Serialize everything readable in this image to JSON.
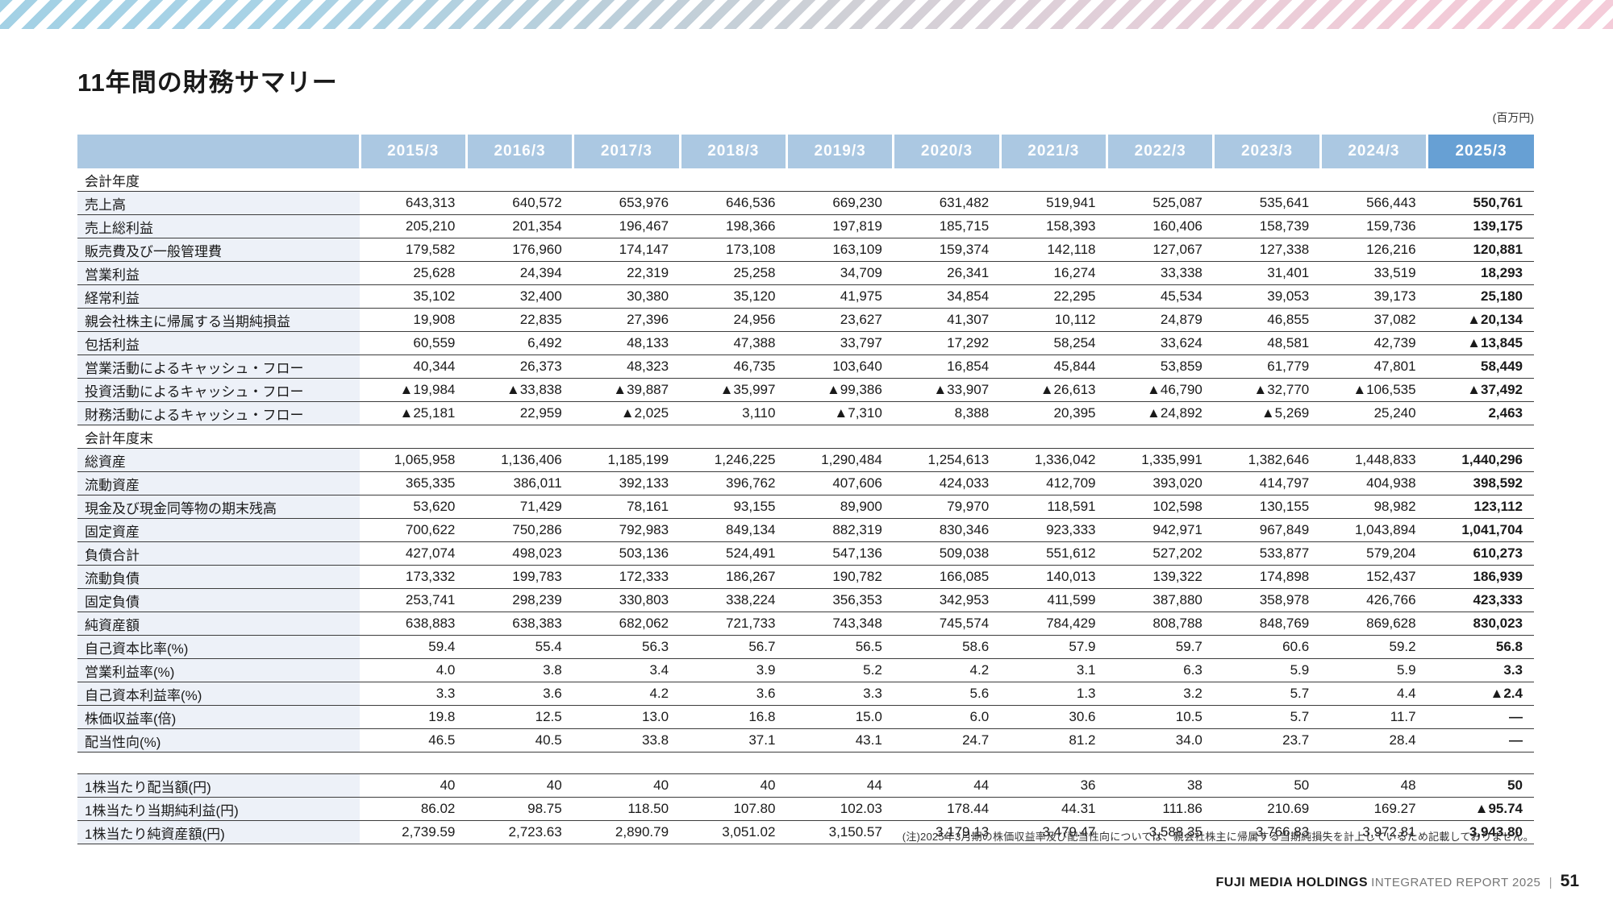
{
  "page": {
    "title": "11年間の財務サマリー",
    "unit_label": "(百万円)",
    "note": "(注)2025年3月期の株価収益率及び配当性向については、親会社株主に帰属する当期純損失を計上しているため記載しておりません。",
    "footer": {
      "company": "FUJI MEDIA HOLDINGS",
      "report": "INTEGRATED REPORT 2025",
      "separator": "|",
      "page_number": "51"
    }
  },
  "colors": {
    "header_blue": "#abc8e2",
    "header_blue_current": "#67a0d4",
    "label_row_tint": "#edf1f8",
    "row_line": "#3c3c3c",
    "stripe_blue": "#a5d2e6",
    "stripe_gray": "#cfd0d6",
    "stripe_pink": "#f3cbd8"
  },
  "table": {
    "columns": [
      "2015/3",
      "2016/3",
      "2017/3",
      "2018/3",
      "2019/3",
      "2020/3",
      "2021/3",
      "2022/3",
      "2023/3",
      "2024/3",
      "2025/3"
    ],
    "current_column_index": 10,
    "rows": [
      {
        "type": "section",
        "label": "会計年度"
      },
      {
        "type": "data",
        "label": "売上高",
        "values": [
          "643,313",
          "640,572",
          "653,976",
          "646,536",
          "669,230",
          "631,482",
          "519,941",
          "525,087",
          "535,641",
          "566,443",
          "550,761"
        ]
      },
      {
        "type": "data",
        "label": "売上総利益",
        "values": [
          "205,210",
          "201,354",
          "196,467",
          "198,366",
          "197,819",
          "185,715",
          "158,393",
          "160,406",
          "158,739",
          "159,736",
          "139,175"
        ]
      },
      {
        "type": "data",
        "label": "販売費及び一般管理費",
        "values": [
          "179,582",
          "176,960",
          "174,147",
          "173,108",
          "163,109",
          "159,374",
          "142,118",
          "127,067",
          "127,338",
          "126,216",
          "120,881"
        ]
      },
      {
        "type": "data",
        "label": "営業利益",
        "values": [
          "25,628",
          "24,394",
          "22,319",
          "25,258",
          "34,709",
          "26,341",
          "16,274",
          "33,338",
          "31,401",
          "33,519",
          "18,293"
        ]
      },
      {
        "type": "data",
        "label": "経常利益",
        "values": [
          "35,102",
          "32,400",
          "30,380",
          "35,120",
          "41,975",
          "34,854",
          "22,295",
          "45,534",
          "39,053",
          "39,173",
          "25,180"
        ]
      },
      {
        "type": "data",
        "label": "親会社株主に帰属する当期純損益",
        "values": [
          "19,908",
          "22,835",
          "27,396",
          "24,956",
          "23,627",
          "41,307",
          "10,112",
          "24,879",
          "46,855",
          "37,082",
          "▲20,134"
        ]
      },
      {
        "type": "data",
        "label": "包括利益",
        "values": [
          "60,559",
          "6,492",
          "48,133",
          "47,388",
          "33,797",
          "17,292",
          "58,254",
          "33,624",
          "48,581",
          "42,739",
          "▲13,845"
        ]
      },
      {
        "type": "data",
        "label": "営業活動によるキャッシュ・フロー",
        "values": [
          "40,344",
          "26,373",
          "48,323",
          "46,735",
          "103,640",
          "16,854",
          "45,844",
          "53,859",
          "61,779",
          "47,801",
          "58,449"
        ]
      },
      {
        "type": "data",
        "label": "投資活動によるキャッシュ・フロー",
        "values": [
          "▲19,984",
          "▲33,838",
          "▲39,887",
          "▲35,997",
          "▲99,386",
          "▲33,907",
          "▲26,613",
          "▲46,790",
          "▲32,770",
          "▲106,535",
          "▲37,492"
        ]
      },
      {
        "type": "data",
        "label": "財務活動によるキャッシュ・フロー",
        "values": [
          "▲25,181",
          "22,959",
          "▲2,025",
          "3,110",
          "▲7,310",
          "8,388",
          "20,395",
          "▲24,892",
          "▲5,269",
          "25,240",
          "2,463"
        ]
      },
      {
        "type": "section",
        "label": "会計年度末"
      },
      {
        "type": "data",
        "label": "総資産",
        "values": [
          "1,065,958",
          "1,136,406",
          "1,185,199",
          "1,246,225",
          "1,290,484",
          "1,254,613",
          "1,336,042",
          "1,335,991",
          "1,382,646",
          "1,448,833",
          "1,440,296"
        ]
      },
      {
        "type": "data",
        "label": "流動資産",
        "values": [
          "365,335",
          "386,011",
          "392,133",
          "396,762",
          "407,606",
          "424,033",
          "412,709",
          "393,020",
          "414,797",
          "404,938",
          "398,592"
        ]
      },
      {
        "type": "data",
        "label": "現金及び現金同等物の期末残高",
        "values": [
          "53,620",
          "71,429",
          "78,161",
          "93,155",
          "89,900",
          "79,970",
          "118,591",
          "102,598",
          "130,155",
          "98,982",
          "123,112"
        ]
      },
      {
        "type": "data",
        "label": "固定資産",
        "values": [
          "700,622",
          "750,286",
          "792,983",
          "849,134",
          "882,319",
          "830,346",
          "923,333",
          "942,971",
          "967,849",
          "1,043,894",
          "1,041,704"
        ]
      },
      {
        "type": "data",
        "label": "負債合計",
        "values": [
          "427,074",
          "498,023",
          "503,136",
          "524,491",
          "547,136",
          "509,038",
          "551,612",
          "527,202",
          "533,877",
          "579,204",
          "610,273"
        ]
      },
      {
        "type": "data",
        "label": "流動負債",
        "values": [
          "173,332",
          "199,783",
          "172,333",
          "186,267",
          "190,782",
          "166,085",
          "140,013",
          "139,322",
          "174,898",
          "152,437",
          "186,939"
        ]
      },
      {
        "type": "data",
        "label": "固定負債",
        "values": [
          "253,741",
          "298,239",
          "330,803",
          "338,224",
          "356,353",
          "342,953",
          "411,599",
          "387,880",
          "358,978",
          "426,766",
          "423,333"
        ]
      },
      {
        "type": "data",
        "label": "純資産額",
        "values": [
          "638,883",
          "638,383",
          "682,062",
          "721,733",
          "743,348",
          "745,574",
          "784,429",
          "808,788",
          "848,769",
          "869,628",
          "830,023"
        ]
      },
      {
        "type": "data",
        "label": "自己資本比率(%)",
        "values": [
          "59.4",
          "55.4",
          "56.3",
          "56.7",
          "56.5",
          "58.6",
          "57.9",
          "59.7",
          "60.6",
          "59.2",
          "56.8"
        ]
      },
      {
        "type": "data",
        "label": "営業利益率(%)",
        "values": [
          "4.0",
          "3.8",
          "3.4",
          "3.9",
          "5.2",
          "4.2",
          "3.1",
          "6.3",
          "5.9",
          "5.9",
          "3.3"
        ]
      },
      {
        "type": "data",
        "label": "自己資本利益率(%)",
        "values": [
          "3.3",
          "3.6",
          "4.2",
          "3.6",
          "3.3",
          "5.6",
          "1.3",
          "3.2",
          "5.7",
          "4.4",
          "▲2.4"
        ]
      },
      {
        "type": "data",
        "label": "株価収益率(倍)",
        "values": [
          "19.8",
          "12.5",
          "13.0",
          "16.8",
          "15.0",
          "6.0",
          "30.6",
          "10.5",
          "5.7",
          "11.7",
          "—"
        ]
      },
      {
        "type": "data",
        "label": "配当性向(%)",
        "values": [
          "46.5",
          "40.5",
          "33.8",
          "37.1",
          "43.1",
          "24.7",
          "81.2",
          "34.0",
          "23.7",
          "28.4",
          "—"
        ]
      },
      {
        "type": "gap"
      },
      {
        "type": "data",
        "label": "1株当たり配当額(円)",
        "values": [
          "40",
          "40",
          "40",
          "40",
          "44",
          "44",
          "36",
          "38",
          "50",
          "48",
          "50"
        ]
      },
      {
        "type": "data",
        "label": "1株当たり当期純利益(円)",
        "values": [
          "86.02",
          "98.75",
          "118.50",
          "107.80",
          "102.03",
          "178.44",
          "44.31",
          "111.86",
          "210.69",
          "169.27",
          "▲95.74"
        ]
      },
      {
        "type": "data",
        "label": "1株当たり純資産額(円)",
        "values": [
          "2,739.59",
          "2,723.63",
          "2,890.79",
          "3,051.02",
          "3,150.57",
          "3,179.13",
          "3,479.47",
          "3,588.35",
          "3,766.83",
          "3,972.81",
          "3,943.80"
        ]
      }
    ]
  }
}
